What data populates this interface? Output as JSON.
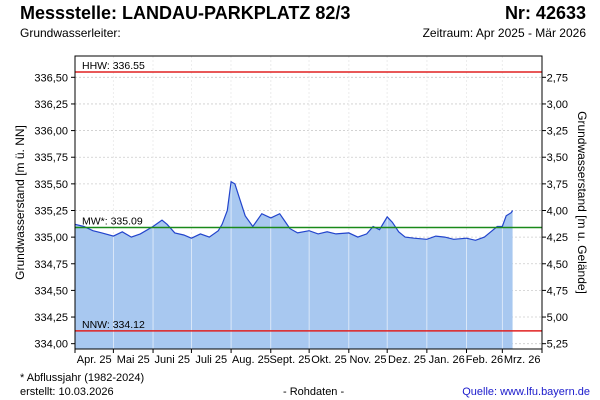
{
  "header": {
    "title": "Messstelle: LANDAU-PARKPLATZ 82/3",
    "number": "Nr: 42633",
    "aquifer_label": "Grundwasserleiter:",
    "period": "Zeitraum: Apr 2025 - Mär 2026"
  },
  "footer": {
    "footnote": "* Abflussjahr (1982-2024)",
    "created": "erstellt:  10.03.2026",
    "raw": "- Rohdaten -",
    "source": "Quelle: www.lfu.bayern.de"
  },
  "colors": {
    "fill": "#a8c8f0",
    "line": "#2244cc",
    "hhw": "#e02020",
    "nnw": "#e02020",
    "mw": "#1a8a1a",
    "grid": "#cccccc"
  },
  "chart_data": {
    "type": "area",
    "ylabel_left": "Grundwasserstand [m ü. NN]",
    "ylabel_right": "Grundwasserstand [m u. Gelände]",
    "ylim_left": [
      333.95,
      336.7
    ],
    "left_ticks": [
      "336,50",
      "336,25",
      "336,00",
      "335,75",
      "335,50",
      "335,25",
      "335,00",
      "334,75",
      "334,50",
      "334,25",
      "334,00"
    ],
    "left_tick_values": [
      336.5,
      336.25,
      336.0,
      335.75,
      335.5,
      335.25,
      335.0,
      334.75,
      334.5,
      334.25,
      334.0
    ],
    "right_ticks": [
      "2,75",
      "3,00",
      "3,25",
      "3,50",
      "3,75",
      "4,00",
      "4,25",
      "4,50",
      "4,75",
      "5,00",
      "5,25"
    ],
    "right_tick_values": [
      2.75,
      3.0,
      3.25,
      3.5,
      3.75,
      4.0,
      4.25,
      4.5,
      4.75,
      5.0,
      5.25
    ],
    "x_ticks": [
      "Apr. 25",
      "Mai 25",
      "Juni 25",
      "Juli 25",
      "Aug. 25",
      "Sept. 25",
      "Okt. 25",
      "Nov. 25",
      "Dez. 25",
      "Jan. 26",
      "Feb. 26",
      "Mrz. 26"
    ],
    "x_range": [
      "2025-04-01",
      "2026-04-01"
    ],
    "grid": true,
    "reference_lines": [
      {
        "label": "HHW: 336.55",
        "value": 336.55
      },
      {
        "label": "MW*: 335.09",
        "value": 335.09
      },
      {
        "label": "NNW: 334.12",
        "value": 334.12
      }
    ],
    "series": [
      {
        "x": [
          "2025-04-01",
          "2025-04-08",
          "2025-04-15",
          "2025-04-22",
          "2025-05-01",
          "2025-05-08",
          "2025-05-15",
          "2025-05-22",
          "2025-06-01",
          "2025-06-08",
          "2025-06-12",
          "2025-06-18",
          "2025-06-25",
          "2025-07-01",
          "2025-07-08",
          "2025-07-15",
          "2025-07-22",
          "2025-07-25",
          "2025-07-29",
          "2025-08-01",
          "2025-08-04",
          "2025-08-08",
          "2025-08-12",
          "2025-08-18",
          "2025-08-25",
          "2025-09-01",
          "2025-09-08",
          "2025-09-12",
          "2025-09-16",
          "2025-09-22",
          "2025-10-01",
          "2025-10-08",
          "2025-10-15",
          "2025-10-22",
          "2025-11-01",
          "2025-11-08",
          "2025-11-15",
          "2025-11-20",
          "2025-11-25",
          "2025-12-01",
          "2025-12-05",
          "2025-12-10",
          "2025-12-15",
          "2025-12-22",
          "2026-01-01",
          "2026-01-08",
          "2026-01-15",
          "2026-01-22",
          "2026-02-01",
          "2026-02-08",
          "2026-02-15",
          "2026-02-20",
          "2026-02-25",
          "2026-03-01",
          "2026-03-04",
          "2026-03-08",
          "2026-03-09"
        ],
        "values": [
          335.12,
          335.1,
          335.06,
          335.04,
          335.01,
          335.05,
          335.0,
          335.03,
          335.1,
          335.16,
          335.12,
          335.04,
          335.02,
          334.99,
          335.03,
          335.0,
          335.06,
          335.12,
          335.25,
          335.52,
          335.5,
          335.35,
          335.2,
          335.1,
          335.22,
          335.18,
          335.22,
          335.15,
          335.08,
          335.04,
          335.06,
          335.03,
          335.05,
          335.03,
          335.04,
          335.0,
          335.03,
          335.1,
          335.07,
          335.19,
          335.14,
          335.05,
          335.0,
          334.99,
          334.98,
          335.01,
          335.0,
          334.98,
          334.99,
          334.97,
          335.0,
          335.05,
          335.1,
          335.1,
          335.2,
          335.23,
          335.25
        ]
      }
    ]
  }
}
